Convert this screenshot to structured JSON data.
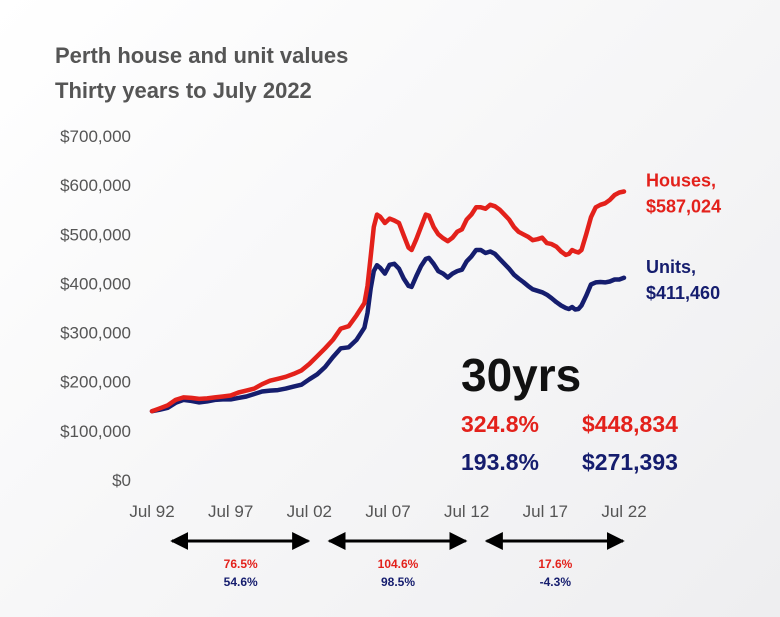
{
  "chart_data": {
    "type": "line",
    "title": "Perth house and unit values",
    "subtitle": "Thirty years to July 2022",
    "ylim": [
      0,
      700000
    ],
    "yticks": [
      0,
      100000,
      200000,
      300000,
      400000,
      500000,
      600000,
      700000
    ],
    "ytick_labels": [
      "$0",
      "$100,000",
      "$200,000",
      "$300,000",
      "$400,000",
      "$500,000",
      "$600,000",
      "$700,000"
    ],
    "xlim": [
      1992.5,
      2022.5
    ],
    "xticks": [
      1992.5,
      1997.5,
      2002.5,
      2007.5,
      2012.5,
      2017.5,
      2022.5
    ],
    "xtick_labels": [
      "Jul 92",
      "Jul 97",
      "Jul 02",
      "Jul 07",
      "Jul 12",
      "Jul 17",
      "Jul 22"
    ],
    "grid": false,
    "legend": "none",
    "series": [
      {
        "name": "Houses",
        "color": "#e3211b",
        "end_label": [
          "Houses,",
          "$587,024"
        ],
        "points": [
          [
            1992.5,
            140000
          ],
          [
            1993.0,
            146000
          ],
          [
            1993.5,
            152000
          ],
          [
            1994.0,
            163000
          ],
          [
            1994.5,
            168000
          ],
          [
            1995.0,
            167000
          ],
          [
            1995.5,
            165000
          ],
          [
            1996.0,
            166000
          ],
          [
            1996.5,
            168000
          ],
          [
            1997.0,
            170000
          ],
          [
            1997.5,
            172000
          ],
          [
            1998.0,
            178000
          ],
          [
            1998.5,
            182000
          ],
          [
            1999.0,
            186000
          ],
          [
            1999.5,
            195000
          ],
          [
            2000.0,
            202000
          ],
          [
            2000.5,
            206000
          ],
          [
            2001.0,
            210000
          ],
          [
            2001.5,
            216000
          ],
          [
            2002.0,
            223000
          ],
          [
            2002.5,
            236000
          ],
          [
            2003.0,
            252000
          ],
          [
            2003.5,
            268000
          ],
          [
            2004.0,
            285000
          ],
          [
            2004.5,
            308000
          ],
          [
            2005.0,
            313000
          ],
          [
            2005.5,
            335000
          ],
          [
            2006.0,
            360000
          ],
          [
            2006.2,
            395000
          ],
          [
            2006.4,
            455000
          ],
          [
            2006.6,
            515000
          ],
          [
            2006.8,
            540000
          ],
          [
            2007.0,
            536000
          ],
          [
            2007.3,
            523000
          ],
          [
            2007.6,
            532000
          ],
          [
            2007.9,
            528000
          ],
          [
            2008.2,
            523000
          ],
          [
            2008.5,
            498000
          ],
          [
            2008.8,
            473000
          ],
          [
            2009.0,
            468000
          ],
          [
            2009.3,
            490000
          ],
          [
            2009.6,
            515000
          ],
          [
            2009.9,
            540000
          ],
          [
            2010.1,
            538000
          ],
          [
            2010.4,
            515000
          ],
          [
            2010.7,
            500000
          ],
          [
            2011.0,
            492000
          ],
          [
            2011.3,
            486000
          ],
          [
            2011.6,
            493000
          ],
          [
            2011.9,
            505000
          ],
          [
            2012.2,
            510000
          ],
          [
            2012.5,
            530000
          ],
          [
            2012.8,
            540000
          ],
          [
            2013.1,
            555000
          ],
          [
            2013.4,
            555000
          ],
          [
            2013.7,
            552000
          ],
          [
            2014.0,
            560000
          ],
          [
            2014.3,
            557000
          ],
          [
            2014.6,
            550000
          ],
          [
            2014.9,
            540000
          ],
          [
            2015.2,
            530000
          ],
          [
            2015.5,
            515000
          ],
          [
            2015.8,
            505000
          ],
          [
            2016.1,
            500000
          ],
          [
            2016.4,
            495000
          ],
          [
            2016.7,
            488000
          ],
          [
            2017.0,
            490000
          ],
          [
            2017.3,
            493000
          ],
          [
            2017.6,
            482000
          ],
          [
            2017.9,
            480000
          ],
          [
            2018.2,
            475000
          ],
          [
            2018.5,
            465000
          ],
          [
            2018.8,
            458000
          ],
          [
            2019.0,
            460000
          ],
          [
            2019.2,
            468000
          ],
          [
            2019.4,
            465000
          ],
          [
            2019.6,
            463000
          ],
          [
            2019.8,
            468000
          ],
          [
            2020.1,
            500000
          ],
          [
            2020.4,
            535000
          ],
          [
            2020.7,
            555000
          ],
          [
            2021.0,
            560000
          ],
          [
            2021.3,
            563000
          ],
          [
            2021.6,
            570000
          ],
          [
            2021.9,
            580000
          ],
          [
            2022.2,
            585000
          ],
          [
            2022.5,
            587024
          ]
        ]
      },
      {
        "name": "Units",
        "color": "#151d6e",
        "end_label": [
          "Units,",
          "$411,460"
        ],
        "points": [
          [
            1992.5,
            140000
          ],
          [
            1993.0,
            143000
          ],
          [
            1993.5,
            147000
          ],
          [
            1994.0,
            157000
          ],
          [
            1994.5,
            163000
          ],
          [
            1995.0,
            161000
          ],
          [
            1995.5,
            158000
          ],
          [
            1996.0,
            160000
          ],
          [
            1996.5,
            163000
          ],
          [
            1997.0,
            164000
          ],
          [
            1997.5,
            164000
          ],
          [
            1998.0,
            167000
          ],
          [
            1998.5,
            170000
          ],
          [
            1999.0,
            175000
          ],
          [
            1999.5,
            180000
          ],
          [
            2000.0,
            182000
          ],
          [
            2000.5,
            183000
          ],
          [
            2001.0,
            186000
          ],
          [
            2001.5,
            190000
          ],
          [
            2002.0,
            194000
          ],
          [
            2002.5,
            205000
          ],
          [
            2003.0,
            215000
          ],
          [
            2003.5,
            230000
          ],
          [
            2004.0,
            250000
          ],
          [
            2004.5,
            268000
          ],
          [
            2005.0,
            270000
          ],
          [
            2005.5,
            285000
          ],
          [
            2006.0,
            310000
          ],
          [
            2006.2,
            340000
          ],
          [
            2006.4,
            390000
          ],
          [
            2006.6,
            425000
          ],
          [
            2006.8,
            437000
          ],
          [
            2007.0,
            432000
          ],
          [
            2007.3,
            420000
          ],
          [
            2007.6,
            438000
          ],
          [
            2007.9,
            440000
          ],
          [
            2008.2,
            430000
          ],
          [
            2008.5,
            410000
          ],
          [
            2008.8,
            395000
          ],
          [
            2009.0,
            393000
          ],
          [
            2009.3,
            415000
          ],
          [
            2009.6,
            435000
          ],
          [
            2009.9,
            450000
          ],
          [
            2010.1,
            452000
          ],
          [
            2010.4,
            440000
          ],
          [
            2010.7,
            425000
          ],
          [
            2011.0,
            420000
          ],
          [
            2011.3,
            412000
          ],
          [
            2011.6,
            420000
          ],
          [
            2011.9,
            425000
          ],
          [
            2012.2,
            428000
          ],
          [
            2012.5,
            445000
          ],
          [
            2012.8,
            455000
          ],
          [
            2013.1,
            468000
          ],
          [
            2013.4,
            468000
          ],
          [
            2013.7,
            462000
          ],
          [
            2014.0,
            465000
          ],
          [
            2014.3,
            460000
          ],
          [
            2014.6,
            450000
          ],
          [
            2014.9,
            440000
          ],
          [
            2015.2,
            430000
          ],
          [
            2015.5,
            418000
          ],
          [
            2015.8,
            410000
          ],
          [
            2016.1,
            403000
          ],
          [
            2016.4,
            395000
          ],
          [
            2016.7,
            388000
          ],
          [
            2017.0,
            385000
          ],
          [
            2017.3,
            382000
          ],
          [
            2017.6,
            377000
          ],
          [
            2017.9,
            370000
          ],
          [
            2018.2,
            362000
          ],
          [
            2018.5,
            355000
          ],
          [
            2018.8,
            350000
          ],
          [
            2019.0,
            348000
          ],
          [
            2019.2,
            352000
          ],
          [
            2019.4,
            347000
          ],
          [
            2019.6,
            348000
          ],
          [
            2019.8,
            355000
          ],
          [
            2020.1,
            375000
          ],
          [
            2020.4,
            398000
          ],
          [
            2020.7,
            402000
          ],
          [
            2021.0,
            403000
          ],
          [
            2021.3,
            402000
          ],
          [
            2021.6,
            404000
          ],
          [
            2021.9,
            408000
          ],
          [
            2022.2,
            408000
          ],
          [
            2022.5,
            411460
          ]
        ]
      }
    ],
    "summary": {
      "heading": "30yrs",
      "rows": [
        {
          "color": "#e3211b",
          "percent": "324.8%",
          "amount": "$448,834"
        },
        {
          "color": "#151d6e",
          "percent": "193.8%",
          "amount": "$271,393"
        }
      ]
    },
    "periods": [
      {
        "from": 1992.5,
        "to": 2002.5,
        "houses": "76.5%",
        "units": "54.6%"
      },
      {
        "from": 2002.5,
        "to": 2012.5,
        "houses": "104.6%",
        "units": "98.5%"
      },
      {
        "from": 2012.5,
        "to": 2022.5,
        "houses": "17.6%",
        "units": "-4.3%"
      }
    ]
  }
}
